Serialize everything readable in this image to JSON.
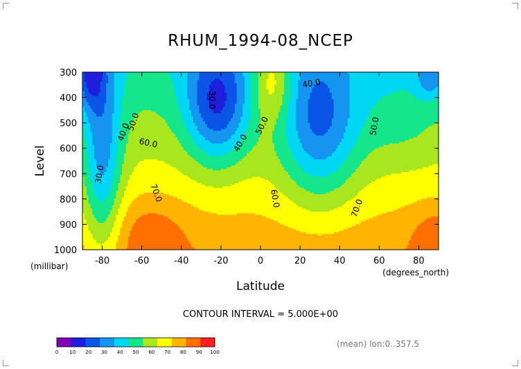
{
  "chart_data": {
    "type": "heatmap",
    "title": "RHUM_1994-08_NCEP",
    "xlabel": "Latitude",
    "xunit": "(degrees_north)",
    "ylabel": "Level",
    "yunit": "(millibar)",
    "xlim": [
      -90,
      90
    ],
    "ylim": [
      1000,
      300
    ],
    "x_ticks": [
      "-80",
      "-60",
      "-40",
      "-20",
      "0",
      "20",
      "40",
      "60",
      "80"
    ],
    "y_ticks": [
      "300",
      "400",
      "500",
      "600",
      "700",
      "800",
      "900",
      "1000"
    ],
    "contour_interval_text": "CONTOUR INTERVAL = 5.000E+00",
    "mean_text": "(mean) lon:0..357.5",
    "contour_labels": [
      "40.0",
      "50.0",
      "60.0",
      "70.0",
      "30.0",
      "30.0",
      "40.0",
      "50.0",
      "60.0",
      "70.0",
      "40.0",
      "50.0"
    ],
    "colorbar": {
      "ticks": [
        "0",
        "10",
        "20",
        "30",
        "40",
        "50",
        "60",
        "70",
        "80",
        "90",
        "100"
      ],
      "colors": [
        "#7f00b4",
        "#1e1edc",
        "#0a55e6",
        "#1496f0",
        "#00d7f5",
        "#14e68c",
        "#aae61e",
        "#ffff00",
        "#ffb400",
        "#ff6e00",
        "#ff1e1e"
      ]
    }
  }
}
